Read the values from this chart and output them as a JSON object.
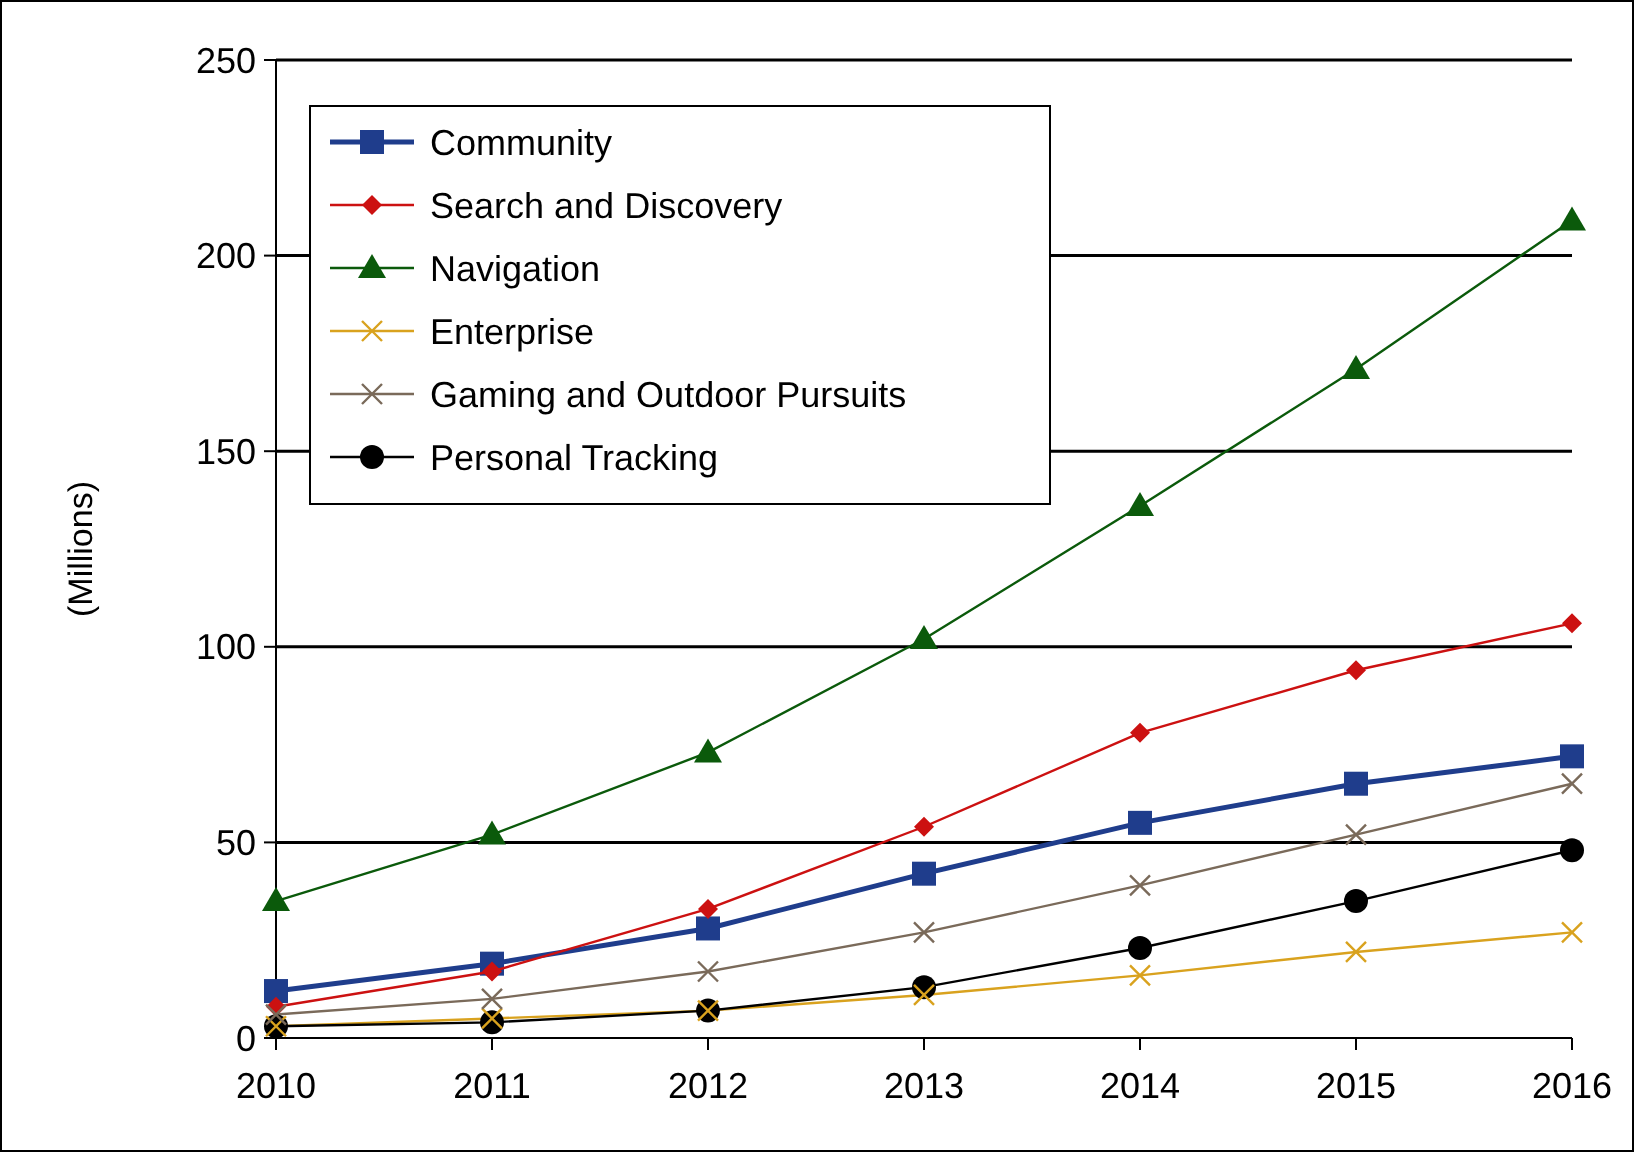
{
  "chart_data": {
    "type": "line",
    "ylabel": "(Millions)",
    "x": [
      2010,
      2011,
      2012,
      2013,
      2014,
      2015,
      2016
    ],
    "xlim": [
      2010,
      2016
    ],
    "xticks": [
      2010,
      2011,
      2012,
      2013,
      2014,
      2015,
      2016
    ],
    "ylim": [
      0,
      250
    ],
    "yticks": [
      0,
      50,
      100,
      150,
      200,
      250
    ],
    "grid": "y",
    "legend": "top left",
    "series": [
      {
        "name": "Community",
        "color": "#1f3d8c",
        "marker": "square",
        "values": [
          12,
          19,
          28,
          42,
          55,
          65,
          72
        ]
      },
      {
        "name": "Search and Discovery",
        "color": "#cc1111",
        "marker": "diamond",
        "values": [
          8,
          17,
          33,
          54,
          78,
          94,
          106
        ]
      },
      {
        "name": "Navigation",
        "color": "#0b5a0b",
        "marker": "triangle",
        "values": [
          35,
          52,
          73,
          102,
          136,
          171,
          209
        ]
      },
      {
        "name": "Enterprise",
        "color": "#d9a21e",
        "marker": "cross",
        "values": [
          3,
          5,
          7,
          11,
          16,
          22,
          27
        ]
      },
      {
        "name": "Gaming and Outdoor Pursuits",
        "color": "#7a6a5a",
        "marker": "cross",
        "values": [
          6,
          10,
          17,
          27,
          39,
          52,
          65
        ]
      },
      {
        "name": "Personal Tracking",
        "color": "#000000",
        "marker": "circle",
        "values": [
          3,
          4,
          7,
          13,
          23,
          35,
          48
        ]
      }
    ]
  }
}
